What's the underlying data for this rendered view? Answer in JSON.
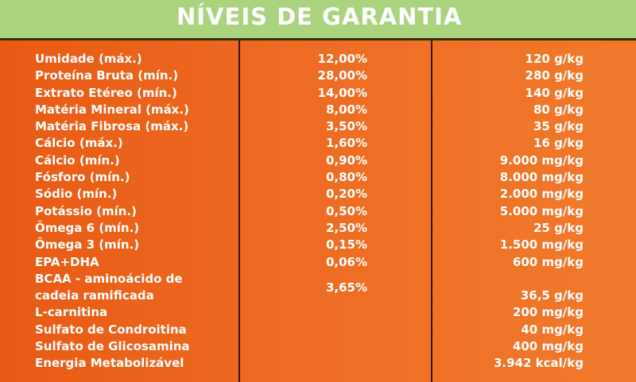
{
  "title": "NÍVEIS DE GARANTIA",
  "rows": [
    {
      "label": "Umidade (máx.)",
      "pct": "12,00%",
      "qty": "120 g/kg"
    },
    {
      "label": "Proteína Bruta (mín.)",
      "pct": "28,00%",
      "qty": "280 g/kg"
    },
    {
      "label": "Extrato Etéreo (mín.)",
      "pct": "14,00%",
      "qty": "140 g/kg"
    },
    {
      "label": "Matéria Mineral (máx.)",
      "pct": "8,00%",
      "qty": "80 g/kg"
    },
    {
      "label": "Matéria Fibrosa (máx.)",
      "pct": "3,50%",
      "qty": "35 g/kg"
    },
    {
      "label": "Cálcio (máx.)",
      "pct": "1,60%",
      "qty": "16 g/kg"
    },
    {
      "label": "Cálcio (mín.)",
      "pct": "0,90%",
      "qty": "9.000 mg/kg"
    },
    {
      "label": "Fósforo (mín.)",
      "pct": "0,80%",
      "qty": "8.000 mg/kg"
    },
    {
      "label": "Sódio (mín.)",
      "pct": "0,20%",
      "qty": "2.000 mg/kg"
    },
    {
      "label": "Potássio (mín.)",
      "pct": "0,50%",
      "qty": "5.000 mg/kg"
    },
    {
      "label": "Ômega 6 (mín.)",
      "pct": "2,50%",
      "qty": "25 g/kg"
    },
    {
      "label": "Ômega 3 (mín.)",
      "pct": "0,15%",
      "qty": "1.500 mg/kg"
    },
    {
      "label": "EPA+DHA",
      "pct": "0,06%",
      "qty": "600 mg/kg"
    },
    {
      "label_line1": "BCAA - aminoácido de",
      "label_line2": "cadeia ramificada",
      "pct": "3,65%",
      "qty": "36,5 g/kg"
    },
    {
      "label": "L-carnitina",
      "pct": "",
      "qty": "200 mg/kg"
    },
    {
      "label": "Sulfato de Condroitina",
      "pct": "",
      "qty": "40 mg/kg"
    },
    {
      "label": "Sulfato de Glicosamina",
      "pct": "",
      "qty": "400 mg/kg"
    },
    {
      "label": "Energia Metabolizável",
      "pct": "",
      "qty": "3.942 kcal/kg"
    }
  ]
}
